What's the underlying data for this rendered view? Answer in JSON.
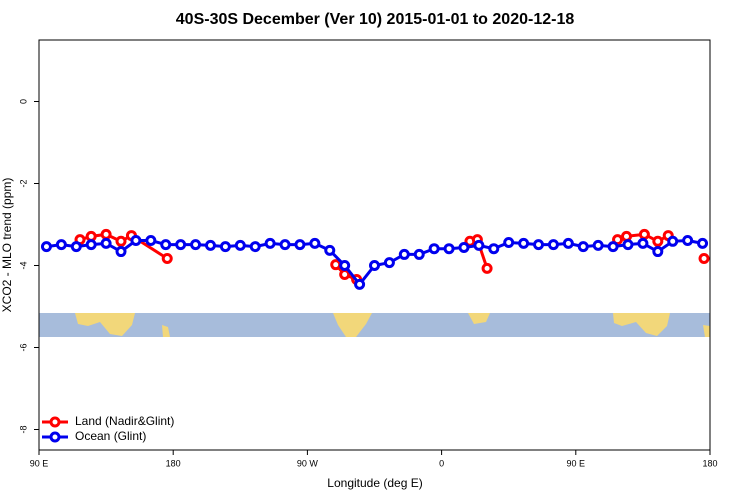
{
  "chart_data": {
    "type": "line",
    "title": "40S-30S December (Ver 10)   2015-01-01 to 2020-12-18",
    "x_label": "Longitude (deg E)",
    "y_label": "XCO2 - MLO trend (ppm)",
    "xlim": [
      90,
      540
    ],
    "xticks": [
      {
        "value": 90,
        "label": "90 E"
      },
      {
        "value": 180,
        "label": "180"
      },
      {
        "value": 270,
        "label": "90 W"
      },
      {
        "value": 360,
        "label": "0"
      },
      {
        "value": 450,
        "label": "90 E"
      },
      {
        "value": 540,
        "label": "180"
      }
    ],
    "ylim": [
      -8.5,
      1.5
    ],
    "yticks": [
      0,
      -2,
      -4,
      -6,
      -8
    ],
    "legend": "bottom-left",
    "series": [
      {
        "name": "Land (Nadir&Glint)",
        "color": "#ff0000",
        "x": [
          117.5,
          125,
          135,
          145,
          152,
          176,
          230,
          289,
          295,
          303,
          350,
          379,
          384,
          390.5,
          430,
          478,
          484,
          496,
          505,
          512,
          525,
          536
        ],
        "values": [
          -3.37,
          -3.29,
          -3.24,
          -3.41,
          -3.27,
          -3.83,
          null,
          -3.98,
          -4.22,
          -4.34,
          null,
          -3.41,
          -3.37,
          -4.07,
          null,
          -3.37,
          -3.29,
          -3.24,
          -3.41,
          -3.27,
          null,
          -3.83
        ]
      },
      {
        "name": "Ocean (Glint)",
        "color": "#0000ee",
        "x": [
          95,
          105,
          115,
          125,
          135,
          145,
          155,
          165,
          175,
          185,
          195,
          205,
          215,
          225,
          235,
          245,
          255,
          265,
          275,
          285,
          295,
          305,
          315,
          325,
          335,
          345,
          355,
          365,
          375,
          385,
          395,
          405,
          415,
          425,
          435,
          445,
          455,
          465,
          475,
          485,
          495,
          505,
          515,
          525,
          535
        ],
        "values": [
          -3.54,
          -3.49,
          -3.54,
          -3.49,
          -3.46,
          -3.66,
          -3.39,
          -3.39,
          -3.49,
          -3.49,
          -3.49,
          -3.51,
          -3.54,
          -3.51,
          -3.54,
          -3.46,
          -3.49,
          -3.49,
          -3.46,
          -3.63,
          -4.0,
          -4.46,
          -4.0,
          -3.93,
          -3.73,
          -3.73,
          -3.59,
          -3.59,
          -3.56,
          -3.51,
          -3.59,
          -3.44,
          -3.46,
          -3.49,
          -3.49,
          -3.46,
          -3.54,
          -3.51,
          -3.54,
          -3.49,
          -3.46,
          -3.66,
          -3.41,
          -3.39,
          -3.46
        ]
      }
    ]
  }
}
